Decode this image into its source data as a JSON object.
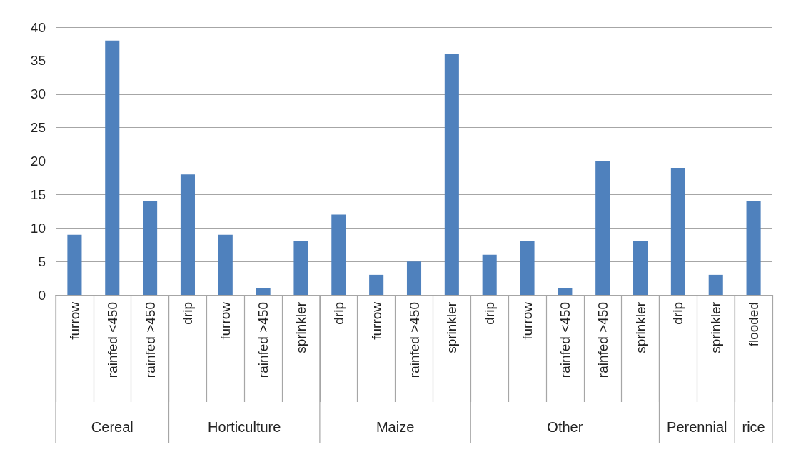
{
  "chart_data": {
    "type": "bar",
    "categories": [
      "furrow",
      "rainfed <450",
      "rainfed >450",
      "drip",
      "furrow",
      "rainfed >450",
      "sprinkler",
      "drip",
      "furrow",
      "rainfed >450",
      "sprinkler",
      "drip",
      "furrow",
      "rainfed <450",
      "rainfed >450",
      "sprinkler",
      "drip",
      "sprinkler",
      "flooded"
    ],
    "values": [
      9,
      38,
      14,
      18,
      9,
      1,
      8,
      12,
      3,
      5,
      36,
      6,
      8,
      1,
      20,
      8,
      19,
      3,
      14
    ],
    "color": "#4f81bd",
    "ylim": [
      0,
      40
    ],
    "yticks": [
      0,
      5,
      10,
      15,
      20,
      25,
      30,
      35,
      40
    ],
    "grid": "y",
    "annotations": [
      "Cereal",
      "Horticulture",
      "Maize",
      "Other",
      "Perennial",
      "rice"
    ]
  }
}
